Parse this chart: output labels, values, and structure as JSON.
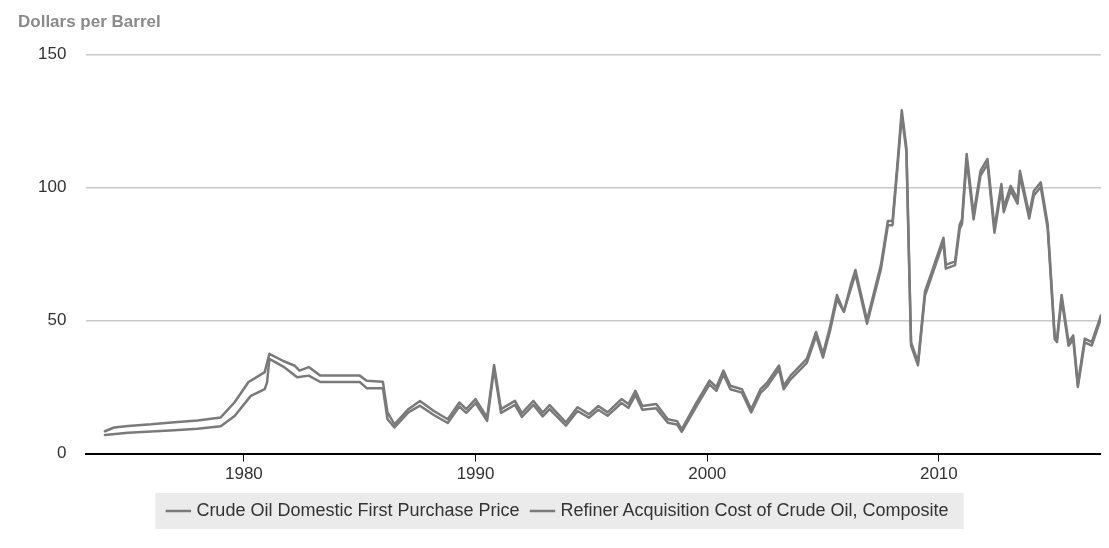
{
  "chart_data": {
    "type": "line",
    "ylabel": "Dollars per Barrel",
    "xlim": [
      1973.2,
      2017
    ],
    "xticks": [
      1980,
      1990,
      2000,
      2010
    ],
    "ylim": [
      0,
      150
    ],
    "yticks": [
      0,
      50,
      100,
      150
    ],
    "grid": "y",
    "legend": "bottom",
    "marker": "none",
    "line_style": "solid",
    "series": [
      {
        "name": "Crude Oil Domestic First Purchase Price",
        "color": "#7a7a7a",
        "x": [
          1974.0,
          1975.0,
          1976.0,
          1977.0,
          1978.0,
          1979.0,
          1979.6,
          1980.3,
          1980.9,
          1981.0,
          1981.1,
          1981.7,
          1982.3,
          1982.8,
          1983.3,
          1985.0,
          1985.3,
          1986.0,
          1986.2,
          1986.5,
          1987.1,
          1987.6,
          1988.2,
          1988.8,
          1989.3,
          1989.6,
          1990.0,
          1990.5,
          1990.8,
          1991.1,
          1991.7,
          1992.0,
          1992.5,
          1992.9,
          1993.2,
          1993.9,
          1994.4,
          1994.9,
          1995.3,
          1995.7,
          1996.3,
          1996.6,
          1996.9,
          1997.2,
          1997.8,
          1998.3,
          1998.7,
          1998.9,
          1999.5,
          2000.1,
          2000.4,
          2000.7,
          2001.0,
          2001.5,
          2001.9,
          2002.3,
          2002.6,
          2003.1,
          2003.3,
          2003.6,
          2004.3,
          2004.7,
          2005.0,
          2005.3,
          2005.6,
          2005.9,
          2006.2,
          2006.4,
          2006.9,
          2007.5,
          2007.8,
          2008.0,
          2008.2,
          2008.4,
          2008.6,
          2008.8,
          2009.1,
          2009.4,
          2009.7,
          2009.9,
          2010.2,
          2010.3,
          2010.7,
          2010.9,
          2011.0,
          2011.2,
          2011.5,
          2011.8,
          2012.1,
          2012.4,
          2012.7,
          2012.8,
          2013.1,
          2013.4,
          2013.5,
          2013.9,
          2014.1,
          2014.4,
          2014.7,
          2015.0,
          2015.1,
          2015.3,
          2015.6,
          2015.8,
          2016.0,
          2016.3,
          2016.6,
          2017.0
        ],
        "values": [
          7.0,
          7.8,
          8.3,
          8.8,
          9.3,
          10.3,
          14.1,
          21.7,
          24.2,
          26.8,
          35.6,
          32.7,
          28.7,
          29.3,
          26.9,
          26.9,
          24.6,
          24.6,
          12.9,
          9.8,
          15.5,
          18.0,
          14.5,
          11.5,
          17.7,
          15.3,
          19.0,
          12.3,
          31.8,
          15.3,
          18.3,
          13.8,
          18.3,
          14.0,
          16.7,
          10.5,
          16.0,
          13.5,
          16.5,
          14.2,
          19.0,
          17.2,
          22.0,
          16.5,
          17.0,
          11.6,
          10.9,
          8.2,
          17.2,
          26.0,
          23.6,
          29.8,
          24.2,
          22.9,
          15.5,
          22.8,
          25.4,
          31.7,
          24.2,
          27.9,
          34.1,
          44.2,
          36.1,
          46.0,
          58.0,
          53.3,
          61.9,
          67.5,
          48.8,
          69.3,
          85.8,
          85.8,
          106.0,
          127.0,
          113.5,
          40.6,
          33.2,
          59.3,
          66.9,
          72.0,
          79.5,
          69.5,
          70.8,
          84.4,
          86.3,
          110.5,
          88.0,
          104.5,
          108.8,
          83.0,
          99.5,
          90.7,
          98.8,
          93.9,
          104.5,
          88.3,
          97.0,
          100.2,
          84.5,
          43.0,
          41.9,
          58.0,
          40.5,
          43.0,
          25.0,
          41.8,
          40.6,
          50.8
        ]
      },
      {
        "name": "Refiner Acquisition Cost of Crude Oil, Composite",
        "color": "#7a7a7a",
        "x": [
          1974.0,
          1974.4,
          1975.0,
          1976.0,
          1977.0,
          1978.0,
          1979.0,
          1979.6,
          1980.2,
          1980.9,
          1981.1,
          1981.7,
          1982.2,
          1982.4,
          1982.8,
          1983.3,
          1985.0,
          1985.3,
          1986.0,
          1986.2,
          1986.5,
          1987.1,
          1987.6,
          1988.2,
          1988.8,
          1989.3,
          1989.6,
          1990.0,
          1990.5,
          1990.8,
          1991.1,
          1991.7,
          1992.0,
          1992.5,
          1992.9,
          1993.2,
          1993.9,
          1994.4,
          1994.9,
          1995.3,
          1995.7,
          1996.3,
          1996.6,
          1996.9,
          1997.2,
          1997.8,
          1998.3,
          1998.7,
          1998.9,
          1999.5,
          2000.1,
          2000.4,
          2000.7,
          2001.0,
          2001.5,
          2001.9,
          2002.3,
          2002.6,
          2003.1,
          2003.3,
          2003.6,
          2004.3,
          2004.7,
          2005.0,
          2005.3,
          2005.6,
          2005.9,
          2006.2,
          2006.4,
          2006.9,
          2007.5,
          2007.8,
          2008.0,
          2008.2,
          2008.4,
          2008.6,
          2008.8,
          2009.1,
          2009.4,
          2009.7,
          2009.9,
          2010.2,
          2010.3,
          2010.7,
          2010.9,
          2011.0,
          2011.2,
          2011.5,
          2011.8,
          2012.1,
          2012.4,
          2012.7,
          2012.8,
          2013.1,
          2013.4,
          2013.5,
          2013.9,
          2014.1,
          2014.4,
          2014.7,
          2015.0,
          2015.1,
          2015.3,
          2015.6,
          2015.8,
          2016.0,
          2016.3,
          2016.6,
          2017.0
        ],
        "values": [
          8.4,
          9.8,
          10.4,
          11.0,
          11.8,
          12.4,
          13.6,
          19.3,
          26.9,
          30.6,
          37.5,
          34.8,
          33.0,
          31.2,
          32.5,
          29.3,
          29.3,
          27.4,
          27.0,
          15.5,
          11.0,
          16.7,
          19.8,
          16.0,
          12.9,
          19.2,
          16.7,
          20.5,
          13.6,
          33.3,
          16.7,
          19.8,
          15.2,
          19.8,
          15.4,
          18.2,
          11.7,
          17.4,
          14.8,
          17.9,
          15.5,
          20.5,
          18.6,
          23.6,
          17.9,
          18.6,
          12.9,
          12.2,
          9.1,
          18.6,
          27.4,
          25.0,
          31.2,
          25.5,
          24.2,
          16.7,
          24.2,
          26.8,
          33.1,
          25.5,
          29.3,
          35.6,
          45.7,
          37.5,
          47.6,
          59.6,
          53.3,
          63.4,
          69.0,
          50.1,
          70.9,
          87.4,
          87.4,
          107.6,
          129.0,
          115.0,
          41.9,
          34.3,
          60.9,
          68.4,
          73.5,
          81.1,
          70.9,
          72.2,
          86.1,
          88.0,
          112.6,
          89.9,
          106.3,
          110.7,
          84.8,
          101.3,
          92.4,
          100.6,
          95.6,
          106.3,
          89.9,
          98.7,
          101.9,
          86.1,
          44.4,
          43.2,
          59.6,
          41.9,
          44.4,
          26.1,
          43.2,
          41.9,
          52.0
        ]
      }
    ]
  }
}
